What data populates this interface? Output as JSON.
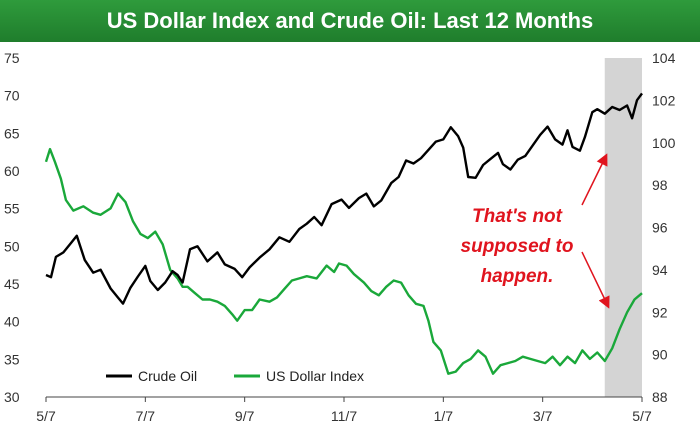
{
  "title": "US Dollar Index and Crude Oil: Last 12 Months",
  "chart_data": {
    "type": "line",
    "title": "US Dollar Index and Crude Oil: Last 12 Months",
    "x_ticks": [
      "5/7",
      "7/7",
      "9/7",
      "11/7",
      "1/7",
      "3/7",
      "5/7"
    ],
    "y_left": {
      "min": 30,
      "max": 75,
      "ticks": [
        "30",
        "35",
        "40",
        "45",
        "50",
        "55",
        "60",
        "65",
        "70",
        "75"
      ]
    },
    "y_right": {
      "min": 88,
      "max": 104,
      "ticks": [
        "88",
        "90",
        "92",
        "94",
        "96",
        "98",
        "100",
        "102",
        "104"
      ]
    },
    "legend": [
      "Crude Oil",
      "US Dollar Index"
    ],
    "legend_position": "bottom-left",
    "highlight_region": {
      "from_month": 11.25,
      "to_month": 12.0,
      "color": "#d4d4d4"
    },
    "annotation": [
      "That's not",
      "supposed to",
      "happen."
    ],
    "colors": {
      "crude_oil": "#000000",
      "dollar_index": "#1aa83a",
      "annotation": "#e0141e",
      "title_bg": "#238a31"
    },
    "series": [
      {
        "name": "Crude Oil",
        "axis": "left",
        "points": [
          [
            0.0,
            46.2
          ],
          [
            0.1,
            45.9
          ],
          [
            0.2,
            48.6
          ],
          [
            0.35,
            49.2
          ],
          [
            0.5,
            50.4
          ],
          [
            0.62,
            51.4
          ],
          [
            0.78,
            48.2
          ],
          [
            0.95,
            46.5
          ],
          [
            1.1,
            46.9
          ],
          [
            1.3,
            44.4
          ],
          [
            1.45,
            43.2
          ],
          [
            1.55,
            42.4
          ],
          [
            1.7,
            44.5
          ],
          [
            1.85,
            46.0
          ],
          [
            2.0,
            47.4
          ],
          [
            2.1,
            45.4
          ],
          [
            2.25,
            44.2
          ],
          [
            2.4,
            45.2
          ],
          [
            2.55,
            46.7
          ],
          [
            2.65,
            46.2
          ],
          [
            2.75,
            45.2
          ],
          [
            2.9,
            49.6
          ],
          [
            3.05,
            50.0
          ],
          [
            3.25,
            48.0
          ],
          [
            3.45,
            49.2
          ],
          [
            3.6,
            47.6
          ],
          [
            3.8,
            47.0
          ],
          [
            3.95,
            45.9
          ],
          [
            4.1,
            47.2
          ],
          [
            4.3,
            48.5
          ],
          [
            4.5,
            49.6
          ],
          [
            4.7,
            51.2
          ],
          [
            4.9,
            50.6
          ],
          [
            5.1,
            52.3
          ],
          [
            5.25,
            53.0
          ],
          [
            5.4,
            53.9
          ],
          [
            5.55,
            52.8
          ],
          [
            5.75,
            55.6
          ],
          [
            5.95,
            56.2
          ],
          [
            6.1,
            55.1
          ],
          [
            6.3,
            56.4
          ],
          [
            6.45,
            57.0
          ],
          [
            6.6,
            55.3
          ],
          [
            6.75,
            56.1
          ],
          [
            6.95,
            58.4
          ],
          [
            7.1,
            59.2
          ],
          [
            7.25,
            61.4
          ],
          [
            7.4,
            61.0
          ],
          [
            7.55,
            61.7
          ],
          [
            7.7,
            62.8
          ],
          [
            7.85,
            63.9
          ],
          [
            8.0,
            64.2
          ],
          [
            8.15,
            65.8
          ],
          [
            8.3,
            64.6
          ],
          [
            8.4,
            63.1
          ],
          [
            8.5,
            59.2
          ],
          [
            8.65,
            59.1
          ],
          [
            8.8,
            60.8
          ],
          [
            8.95,
            61.6
          ],
          [
            9.1,
            62.4
          ],
          [
            9.2,
            60.9
          ],
          [
            9.35,
            60.2
          ],
          [
            9.5,
            61.5
          ],
          [
            9.65,
            62.0
          ],
          [
            9.8,
            63.4
          ],
          [
            9.95,
            64.8
          ],
          [
            10.1,
            65.9
          ],
          [
            10.25,
            64.2
          ],
          [
            10.4,
            63.5
          ],
          [
            10.5,
            65.4
          ],
          [
            10.6,
            63.2
          ],
          [
            10.75,
            62.7
          ],
          [
            10.85,
            64.5
          ],
          [
            11.0,
            67.8
          ],
          [
            11.1,
            68.2
          ],
          [
            11.25,
            67.6
          ],
          [
            11.4,
            68.5
          ],
          [
            11.55,
            68.1
          ],
          [
            11.7,
            68.7
          ],
          [
            11.8,
            67.0
          ],
          [
            11.9,
            69.4
          ],
          [
            12.0,
            70.3
          ]
        ]
      },
      {
        "name": "US Dollar Index",
        "axis": "right",
        "points": [
          [
            0.0,
            99.1
          ],
          [
            0.08,
            99.7
          ],
          [
            0.18,
            99.1
          ],
          [
            0.3,
            98.3
          ],
          [
            0.4,
            97.3
          ],
          [
            0.55,
            96.8
          ],
          [
            0.75,
            97.0
          ],
          [
            0.95,
            96.7
          ],
          [
            1.1,
            96.6
          ],
          [
            1.3,
            96.9
          ],
          [
            1.45,
            97.6
          ],
          [
            1.6,
            97.2
          ],
          [
            1.75,
            96.3
          ],
          [
            1.9,
            95.7
          ],
          [
            2.05,
            95.5
          ],
          [
            2.2,
            95.8
          ],
          [
            2.35,
            95.2
          ],
          [
            2.5,
            94.0
          ],
          [
            2.65,
            93.6
          ],
          [
            2.75,
            93.2
          ],
          [
            2.85,
            93.2
          ],
          [
            3.0,
            92.9
          ],
          [
            3.15,
            92.6
          ],
          [
            3.3,
            92.6
          ],
          [
            3.45,
            92.5
          ],
          [
            3.6,
            92.3
          ],
          [
            3.75,
            91.9
          ],
          [
            3.85,
            91.6
          ],
          [
            4.0,
            92.1
          ],
          [
            4.15,
            92.1
          ],
          [
            4.3,
            92.6
          ],
          [
            4.5,
            92.5
          ],
          [
            4.65,
            92.7
          ],
          [
            4.8,
            93.1
          ],
          [
            4.95,
            93.5
          ],
          [
            5.1,
            93.6
          ],
          [
            5.25,
            93.7
          ],
          [
            5.45,
            93.6
          ],
          [
            5.65,
            94.2
          ],
          [
            5.8,
            93.9
          ],
          [
            5.9,
            94.3
          ],
          [
            6.05,
            94.2
          ],
          [
            6.2,
            93.8
          ],
          [
            6.4,
            93.4
          ],
          [
            6.55,
            93.0
          ],
          [
            6.7,
            92.8
          ],
          [
            6.85,
            93.2
          ],
          [
            7.0,
            93.5
          ],
          [
            7.15,
            93.4
          ],
          [
            7.3,
            92.8
          ],
          [
            7.45,
            92.4
          ],
          [
            7.6,
            92.3
          ],
          [
            7.7,
            91.6
          ],
          [
            7.8,
            90.6
          ],
          [
            7.95,
            90.2
          ],
          [
            8.1,
            89.1
          ],
          [
            8.25,
            89.2
          ],
          [
            8.4,
            89.6
          ],
          [
            8.55,
            89.8
          ],
          [
            8.7,
            90.2
          ],
          [
            8.85,
            89.9
          ],
          [
            9.0,
            89.1
          ],
          [
            9.15,
            89.5
          ],
          [
            9.3,
            89.6
          ],
          [
            9.45,
            89.7
          ],
          [
            9.6,
            89.9
          ],
          [
            9.75,
            89.8
          ],
          [
            9.9,
            89.7
          ],
          [
            10.05,
            89.6
          ],
          [
            10.2,
            89.9
          ],
          [
            10.35,
            89.5
          ],
          [
            10.5,
            89.9
          ],
          [
            10.65,
            89.6
          ],
          [
            10.8,
            90.2
          ],
          [
            10.95,
            89.8
          ],
          [
            11.1,
            90.1
          ],
          [
            11.25,
            89.7
          ],
          [
            11.4,
            90.3
          ],
          [
            11.55,
            91.2
          ],
          [
            11.7,
            92.0
          ],
          [
            11.85,
            92.6
          ],
          [
            12.0,
            92.9
          ]
        ]
      }
    ]
  }
}
